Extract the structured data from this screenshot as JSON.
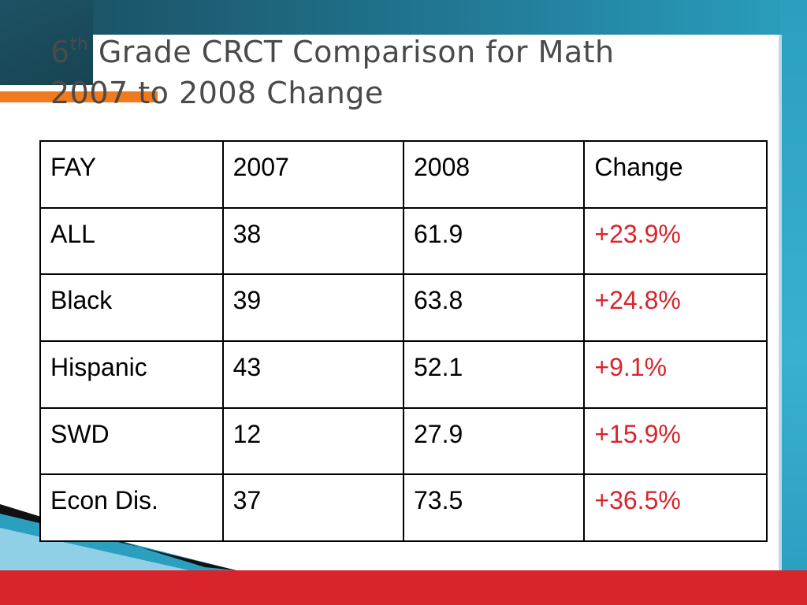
{
  "slide": {
    "title_prefix": "6",
    "title_superscript": "th",
    "title_line1_rest": " Grade CRCT Comparison for Math",
    "title_line2": "2007 to 2008 Change"
  },
  "table": {
    "headers": [
      "FAY",
      "2007",
      "2008",
      "Change"
    ],
    "rows": [
      [
        "ALL",
        "38",
        "61.9",
        "+23.9%"
      ],
      [
        "Black",
        "39",
        "63.8",
        "+24.8%"
      ],
      [
        "Hispanic",
        "43",
        "52.1",
        "+9.1%"
      ],
      [
        "SWD",
        "12",
        "27.9",
        "+15.9%"
      ],
      [
        "Econ Dis.",
        "37",
        "73.5",
        "+36.5%"
      ]
    ]
  },
  "colors": {
    "change_positive": "#d9242b",
    "accent_teal": "#2a9fc0",
    "accent_orange": "#f07a1e",
    "accent_red": "#d9242b"
  }
}
